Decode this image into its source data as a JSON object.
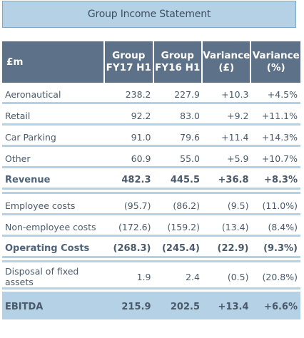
{
  "title": "Group Income Statement",
  "headers": {
    "label": "£m",
    "col1": "Group FY17 H1",
    "col2": "Group FY16 H1",
    "col3": "Variance (£)",
    "col4": "Variance (%)"
  },
  "rows": {
    "aeronautical": {
      "label": "Aeronautical",
      "fy17": "238.2",
      "fy16": "227.9",
      "var_gbp": "+10.3",
      "var_pct": "+4.5%"
    },
    "retail": {
      "label": "Retail",
      "fy17": "92.2",
      "fy16": "83.0",
      "var_gbp": "+9.2",
      "var_pct": "+11.1%"
    },
    "car_parking": {
      "label": "Car Parking",
      "fy17": "91.0",
      "fy16": "79.6",
      "var_gbp": "+11.4",
      "var_pct": "+14.3%"
    },
    "other": {
      "label": "Other",
      "fy17": "60.9",
      "fy16": "55.0",
      "var_gbp": "+5.9",
      "var_pct": "+10.7%"
    },
    "revenue": {
      "label": "Revenue",
      "fy17": "482.3",
      "fy16": "445.5",
      "var_gbp": "+36.8",
      "var_pct": "+8.3%"
    },
    "employee_costs": {
      "label": "Employee costs",
      "fy17": "(95.7)",
      "fy16": "(86.2)",
      "var_gbp": "(9.5)",
      "var_pct": "(11.0%)"
    },
    "non_employee_costs": {
      "label": "Non-employee costs",
      "fy17": "(172.6)",
      "fy16": "(159.2)",
      "var_gbp": "(13.4)",
      "var_pct": "(8.4%)"
    },
    "operating_costs": {
      "label": "Operating Costs",
      "fy17": "(268.3)",
      "fy16": "(245.4)",
      "var_gbp": "(22.9)",
      "var_pct": "(9.3%)"
    },
    "disposal": {
      "label": "Disposal of fixed assets",
      "fy17": "1.9",
      "fy16": "2.4",
      "var_gbp": "(0.5)",
      "var_pct": "(20.8%)"
    },
    "ebitda": {
      "label": "EBITDA",
      "fy17": "215.9",
      "fy16": "202.5",
      "var_gbp": "+13.4",
      "var_pct": "+6.6%"
    }
  },
  "colors": {
    "header_bg": "#5d7288",
    "accent_light": "#b5d1e6",
    "text": "#4a5a6a"
  }
}
